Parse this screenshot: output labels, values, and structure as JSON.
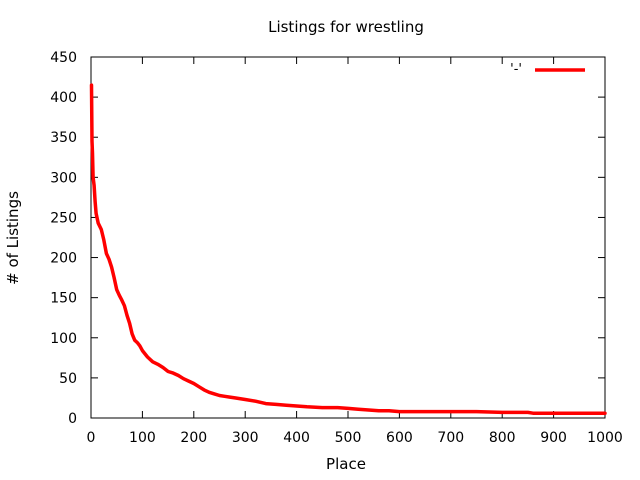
{
  "chart_data": {
    "type": "line",
    "title": "Listings for wrestling",
    "xlabel": "Place",
    "ylabel": "# of Listings",
    "xlim": [
      0,
      1000
    ],
    "ylim": [
      0,
      450
    ],
    "xticks": [
      0,
      100,
      200,
      300,
      400,
      500,
      600,
      700,
      800,
      900,
      1000
    ],
    "yticks": [
      0,
      50,
      100,
      150,
      200,
      250,
      300,
      350,
      400,
      450
    ],
    "grid": false,
    "legend_position": "top-right",
    "series": [
      {
        "name": "'-'",
        "color": "#ff0000",
        "x": [
          1,
          2,
          3,
          4,
          6,
          8,
          10,
          14,
          20,
          25,
          30,
          35,
          40,
          45,
          50,
          55,
          60,
          65,
          70,
          75,
          80,
          85,
          90,
          95,
          100,
          110,
          120,
          130,
          140,
          150,
          160,
          170,
          180,
          190,
          200,
          210,
          220,
          230,
          240,
          250,
          260,
          270,
          280,
          300,
          320,
          340,
          360,
          380,
          400,
          420,
          450,
          480,
          500,
          520,
          540,
          560,
          580,
          600,
          650,
          700,
          750,
          800,
          850,
          860,
          900,
          950,
          1000
        ],
        "values": [
          415,
          345,
          330,
          300,
          290,
          270,
          255,
          243,
          235,
          222,
          205,
          198,
          188,
          175,
          160,
          153,
          147,
          140,
          128,
          118,
          105,
          97,
          94,
          90,
          84,
          76,
          70,
          67,
          63,
          58,
          56,
          53,
          49,
          46,
          43,
          39,
          35,
          32,
          30,
          28,
          27,
          26,
          25,
          23,
          21,
          18,
          17,
          16,
          15,
          14,
          13,
          13,
          12,
          11,
          10,
          9,
          9,
          8,
          8,
          8,
          8,
          7,
          7,
          6,
          6,
          6,
          6
        ]
      }
    ]
  }
}
